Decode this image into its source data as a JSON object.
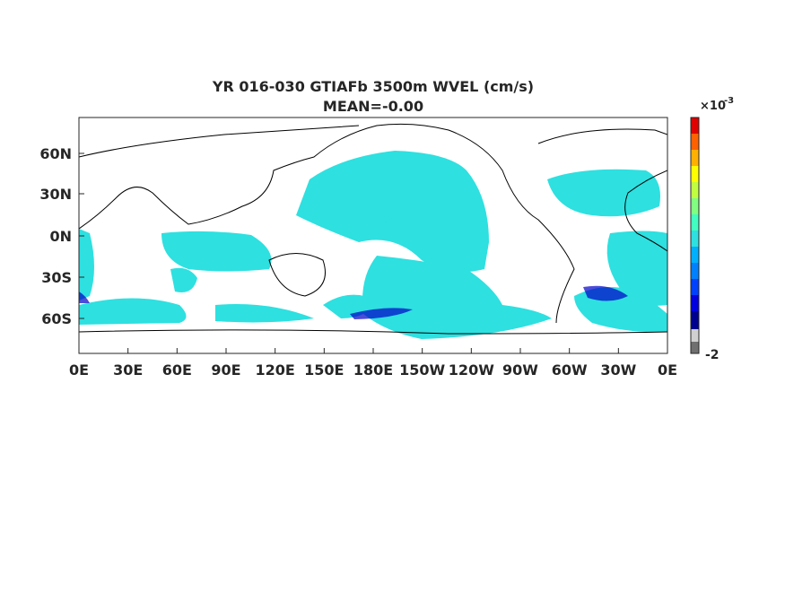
{
  "title": "YR 016-030 GTIAFb 3500m WVEL (cm/s)",
  "subtitle": "MEAN=-0.00",
  "map": {
    "lat_ticks": [
      "60N",
      "30N",
      "0N",
      "30S",
      "60S"
    ],
    "lon_ticks": [
      "0E",
      "30E",
      "60E",
      "90E",
      "120E",
      "150E",
      "180E",
      "150W",
      "120W",
      "90W",
      "60W",
      "30W",
      "0E"
    ]
  },
  "colorbar": {
    "exponent_base": "×10",
    "exponent": "-3",
    "tick_labels": [
      "-2"
    ]
  }
}
